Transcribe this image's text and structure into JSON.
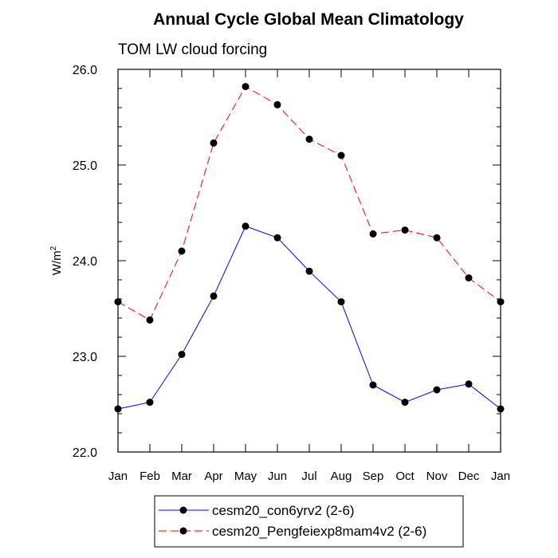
{
  "chart_data": {
    "type": "line",
    "title": "Annual Cycle Global Mean Climatology",
    "subtitle": "TOM LW cloud forcing",
    "ylabel": "W/m",
    "ylabel_sup": "2",
    "xlabel": "",
    "categories": [
      "Jan",
      "Feb",
      "Mar",
      "Apr",
      "May",
      "Jun",
      "Jul",
      "Aug",
      "Sep",
      "Oct",
      "Nov",
      "Dec",
      "Jan"
    ],
    "ylim": [
      22.0,
      26.0
    ],
    "yticks": [
      "22.0",
      "23.0",
      "24.0",
      "25.0",
      "26.0"
    ],
    "series": [
      {
        "name": "cesm20_con6yrv2 (2-6)",
        "color": "#0000ff",
        "dash": "solid",
        "values": [
          22.45,
          22.52,
          23.02,
          23.63,
          24.36,
          24.24,
          23.89,
          23.57,
          22.7,
          22.52,
          22.65,
          22.71,
          22.45
        ]
      },
      {
        "name": "cesm20_Pengfeiexp8mam4v2 (2-6)",
        "color": "#ff0000",
        "dash": "dashed",
        "values": [
          23.57,
          23.38,
          24.1,
          25.23,
          25.82,
          25.63,
          25.27,
          25.1,
          24.28,
          24.32,
          24.24,
          23.82,
          23.57
        ]
      }
    ],
    "legend_position": "bottom"
  }
}
